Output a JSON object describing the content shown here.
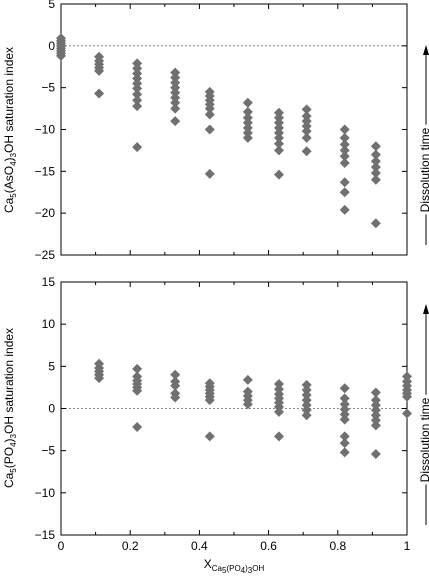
{
  "chart_data": [
    {
      "type": "scatter",
      "ylim": [
        -25,
        5
      ],
      "xlim": [
        0,
        1
      ],
      "yticks": [
        "5",
        "0",
        "−5",
        "−10",
        "−15",
        "−20",
        "−25"
      ],
      "ylabel": {
        "a": "Ca",
        "b": "5",
        "c": "(AsO",
        "d": "4",
        "e": ")",
        "f": "3",
        "g": "OH saturation index"
      },
      "side_label": "Dissolution time",
      "marker_color": "#707070",
      "reference_line": 0,
      "points": [
        {
          "x": 0,
          "y": 0.6
        },
        {
          "x": 0,
          "y": 0.3
        },
        {
          "x": 0,
          "y": 0
        },
        {
          "x": 0,
          "y": -0.3
        },
        {
          "x": 0,
          "y": -0.6
        },
        {
          "x": 0,
          "y": -0.9
        },
        {
          "x": 0,
          "y": 0.9
        },
        {
          "x": 0,
          "y": -1.2
        },
        {
          "x": 0.11,
          "y": -1.3
        },
        {
          "x": 0.11,
          "y": -1.8
        },
        {
          "x": 0.11,
          "y": -2.2
        },
        {
          "x": 0.11,
          "y": -2.6
        },
        {
          "x": 0.11,
          "y": -3.0
        },
        {
          "x": 0.11,
          "y": -5.7
        },
        {
          "x": 0.22,
          "y": -2.1
        },
        {
          "x": 0.22,
          "y": -2.7
        },
        {
          "x": 0.22,
          "y": -3.3
        },
        {
          "x": 0.22,
          "y": -3.9
        },
        {
          "x": 0.22,
          "y": -4.5
        },
        {
          "x": 0.22,
          "y": -5.1
        },
        {
          "x": 0.22,
          "y": -5.8
        },
        {
          "x": 0.22,
          "y": -6.5
        },
        {
          "x": 0.22,
          "y": -7.2
        },
        {
          "x": 0.22,
          "y": -12.1
        },
        {
          "x": 0.33,
          "y": -3.2
        },
        {
          "x": 0.33,
          "y": -3.8
        },
        {
          "x": 0.33,
          "y": -4.4
        },
        {
          "x": 0.33,
          "y": -5.0
        },
        {
          "x": 0.33,
          "y": -5.6
        },
        {
          "x": 0.33,
          "y": -6.2
        },
        {
          "x": 0.33,
          "y": -6.8
        },
        {
          "x": 0.33,
          "y": -7.5
        },
        {
          "x": 0.33,
          "y": -9.0
        },
        {
          "x": 0.43,
          "y": -5.5
        },
        {
          "x": 0.43,
          "y": -6.0
        },
        {
          "x": 0.43,
          "y": -6.5
        },
        {
          "x": 0.43,
          "y": -7.0
        },
        {
          "x": 0.43,
          "y": -7.5
        },
        {
          "x": 0.43,
          "y": -8.2
        },
        {
          "x": 0.43,
          "y": -10.0
        },
        {
          "x": 0.43,
          "y": -15.3
        },
        {
          "x": 0.54,
          "y": -6.8
        },
        {
          "x": 0.54,
          "y": -7.9
        },
        {
          "x": 0.54,
          "y": -8.6
        },
        {
          "x": 0.54,
          "y": -9.2
        },
        {
          "x": 0.54,
          "y": -9.8
        },
        {
          "x": 0.54,
          "y": -10.4
        },
        {
          "x": 0.54,
          "y": -11.0
        },
        {
          "x": 0.63,
          "y": -8.0
        },
        {
          "x": 0.63,
          "y": -8.6
        },
        {
          "x": 0.63,
          "y": -9.2
        },
        {
          "x": 0.63,
          "y": -9.8
        },
        {
          "x": 0.63,
          "y": -10.4
        },
        {
          "x": 0.63,
          "y": -11.0
        },
        {
          "x": 0.63,
          "y": -11.7
        },
        {
          "x": 0.63,
          "y": -12.5
        },
        {
          "x": 0.63,
          "y": -15.4
        },
        {
          "x": 0.71,
          "y": -7.6
        },
        {
          "x": 0.71,
          "y": -8.4
        },
        {
          "x": 0.71,
          "y": -9.0
        },
        {
          "x": 0.71,
          "y": -9.6
        },
        {
          "x": 0.71,
          "y": -10.2
        },
        {
          "x": 0.71,
          "y": -11.0
        },
        {
          "x": 0.71,
          "y": -12.6
        },
        {
          "x": 0.82,
          "y": -10.0
        },
        {
          "x": 0.82,
          "y": -11.0
        },
        {
          "x": 0.82,
          "y": -11.8
        },
        {
          "x": 0.82,
          "y": -12.5
        },
        {
          "x": 0.82,
          "y": -13.2
        },
        {
          "x": 0.82,
          "y": -14.0
        },
        {
          "x": 0.82,
          "y": -16.3
        },
        {
          "x": 0.82,
          "y": -17.5
        },
        {
          "x": 0.82,
          "y": -19.6
        },
        {
          "x": 0.91,
          "y": -12.0
        },
        {
          "x": 0.91,
          "y": -13.0
        },
        {
          "x": 0.91,
          "y": -13.8
        },
        {
          "x": 0.91,
          "y": -14.5
        },
        {
          "x": 0.91,
          "y": -15.2
        },
        {
          "x": 0.91,
          "y": -16.0
        },
        {
          "x": 0.91,
          "y": -21.2
        }
      ]
    },
    {
      "type": "scatter",
      "ylim": [
        -15,
        15
      ],
      "xlim": [
        0,
        1
      ],
      "yticks": [
        "15",
        "10",
        "5",
        "0",
        "−5",
        "−10",
        "−15"
      ],
      "xticks": [
        "0",
        "0.2",
        "0.4",
        "0.6",
        "0.8",
        "1"
      ],
      "ylabel": {
        "a": "Ca",
        "b": "5",
        "c": "(PO",
        "d": "4",
        "e": ")",
        "f": "3",
        "g": "OH saturation index"
      },
      "xlabel": {
        "a": "X",
        "b": "Ca",
        "c": "5",
        "d": "(PO",
        "e": "4",
        "f": ")",
        "g": "3",
        "h": "OH"
      },
      "side_label": "Dissolution time",
      "marker_color": "#707070",
      "reference_line": 0,
      "points": [
        {
          "x": 0.11,
          "y": 5.3
        },
        {
          "x": 0.11,
          "y": 4.8
        },
        {
          "x": 0.11,
          "y": 4.4
        },
        {
          "x": 0.11,
          "y": 4.0
        },
        {
          "x": 0.11,
          "y": 3.6
        },
        {
          "x": 0.22,
          "y": 4.7
        },
        {
          "x": 0.22,
          "y": 3.8
        },
        {
          "x": 0.22,
          "y": 3.3
        },
        {
          "x": 0.22,
          "y": 2.9
        },
        {
          "x": 0.22,
          "y": 2.5
        },
        {
          "x": 0.22,
          "y": 2.1
        },
        {
          "x": 0.22,
          "y": -2.2
        },
        {
          "x": 0.33,
          "y": 4.0
        },
        {
          "x": 0.33,
          "y": 3.2
        },
        {
          "x": 0.33,
          "y": 2.7
        },
        {
          "x": 0.33,
          "y": 1.8
        },
        {
          "x": 0.33,
          "y": 1.3
        },
        {
          "x": 0.43,
          "y": 3.0
        },
        {
          "x": 0.43,
          "y": 2.6
        },
        {
          "x": 0.43,
          "y": 2.2
        },
        {
          "x": 0.43,
          "y": 1.8
        },
        {
          "x": 0.43,
          "y": 1.4
        },
        {
          "x": 0.43,
          "y": 1.0
        },
        {
          "x": 0.43,
          "y": -3.3
        },
        {
          "x": 0.54,
          "y": 3.4
        },
        {
          "x": 0.54,
          "y": 2.0
        },
        {
          "x": 0.54,
          "y": 1.5
        },
        {
          "x": 0.54,
          "y": 1.0
        },
        {
          "x": 0.54,
          "y": 0.5
        },
        {
          "x": 0.63,
          "y": 2.9
        },
        {
          "x": 0.63,
          "y": 2.3
        },
        {
          "x": 0.63,
          "y": 1.7
        },
        {
          "x": 0.63,
          "y": 1.2
        },
        {
          "x": 0.63,
          "y": 0.7
        },
        {
          "x": 0.63,
          "y": 0.2
        },
        {
          "x": 0.63,
          "y": -0.4
        },
        {
          "x": 0.63,
          "y": -3.3
        },
        {
          "x": 0.71,
          "y": 2.8
        },
        {
          "x": 0.71,
          "y": 2.2
        },
        {
          "x": 0.71,
          "y": 1.6
        },
        {
          "x": 0.71,
          "y": 1.0
        },
        {
          "x": 0.71,
          "y": 0.4
        },
        {
          "x": 0.71,
          "y": -0.2
        },
        {
          "x": 0.71,
          "y": -0.8
        },
        {
          "x": 0.82,
          "y": 2.4
        },
        {
          "x": 0.82,
          "y": 1.2
        },
        {
          "x": 0.82,
          "y": 0.5
        },
        {
          "x": 0.82,
          "y": -0.1
        },
        {
          "x": 0.82,
          "y": -0.7
        },
        {
          "x": 0.82,
          "y": -1.3
        },
        {
          "x": 0.82,
          "y": -3.3
        },
        {
          "x": 0.82,
          "y": -4.1
        },
        {
          "x": 0.82,
          "y": -5.2
        },
        {
          "x": 0.91,
          "y": 1.9
        },
        {
          "x": 0.91,
          "y": 1.0
        },
        {
          "x": 0.91,
          "y": 0.4
        },
        {
          "x": 0.91,
          "y": -0.2
        },
        {
          "x": 0.91,
          "y": -0.8
        },
        {
          "x": 0.91,
          "y": -1.4
        },
        {
          "x": 0.91,
          "y": -2.0
        },
        {
          "x": 0.91,
          "y": -5.4
        },
        {
          "x": 1.0,
          "y": 3.8
        },
        {
          "x": 1.0,
          "y": 3.2
        },
        {
          "x": 1.0,
          "y": 2.7
        },
        {
          "x": 1.0,
          "y": 2.2
        },
        {
          "x": 1.0,
          "y": 1.8
        },
        {
          "x": 1.0,
          "y": 1.4
        },
        {
          "x": 1.0,
          "y": -0.6
        }
      ]
    }
  ]
}
